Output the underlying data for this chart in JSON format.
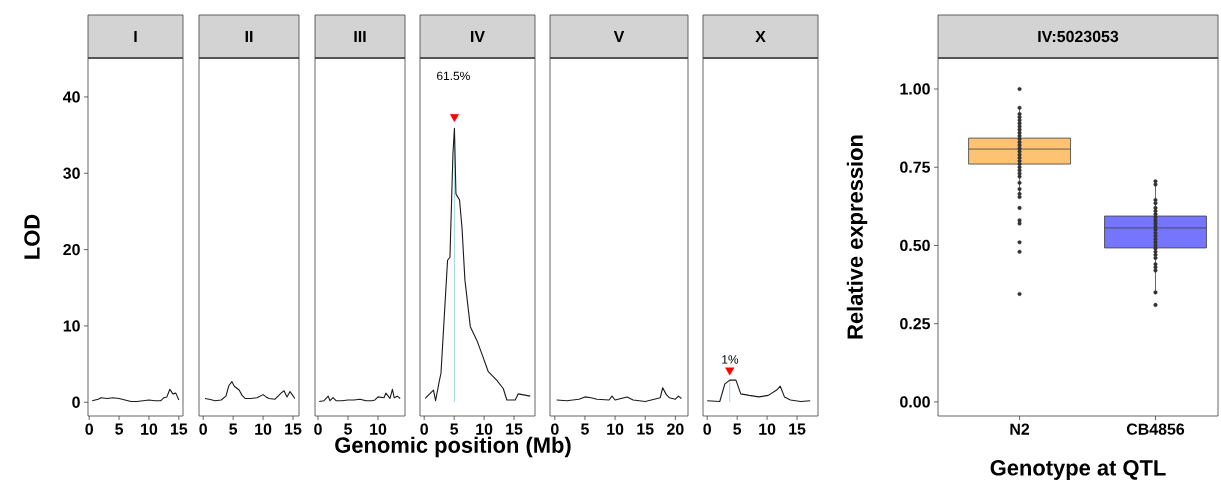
{
  "chart_data": [
    {
      "type": "line",
      "title": "I",
      "ylabel": "LOD",
      "xlim": [
        -0.2,
        15.7
      ],
      "ylim": [
        -1.8,
        45.1
      ],
      "xticks": [
        0,
        5,
        10,
        15
      ],
      "yticks": [
        0,
        10,
        20,
        30,
        40
      ],
      "marker": "none",
      "series": [
        {
          "color": "#1a1a1a",
          "x": [
            0.5,
            1.5,
            2,
            3,
            4,
            5,
            6,
            7,
            8,
            9,
            10,
            11,
            12,
            12.5,
            13,
            13.5,
            14,
            14.5,
            15
          ],
          "values": [
            0.2,
            0.4,
            0.6,
            0.5,
            0.6,
            0.5,
            0.3,
            0.1,
            0.1,
            0.2,
            0.3,
            0.2,
            0.2,
            0.6,
            0.7,
            1.7,
            1.1,
            1.2,
            0.3
          ]
        }
      ]
    },
    {
      "type": "line",
      "title": "II",
      "xlim": [
        -0.7,
        16
      ],
      "ylim": [
        -1.8,
        45.1
      ],
      "xticks": [
        0,
        5,
        10,
        15
      ],
      "tick_labels": "x",
      "marker": "none",
      "series": [
        {
          "color": "#1a1a1a",
          "x": [
            0.3,
            1,
            2,
            3,
            3.8,
            4.3,
            4.8,
            5.2,
            6,
            6.5,
            7,
            8,
            9,
            10,
            10.5,
            11,
            12,
            12.5,
            13,
            13.5,
            14,
            14.5,
            15.3
          ],
          "values": [
            0.5,
            0.4,
            0.2,
            0.3,
            0.8,
            2.2,
            2.7,
            2.1,
            1.6,
            0.9,
            0.5,
            0.5,
            0.6,
            1.0,
            0.7,
            0.5,
            0.4,
            0.8,
            1.2,
            1.5,
            0.7,
            1.4,
            0.5
          ]
        }
      ]
    },
    {
      "type": "line",
      "title": "III",
      "xlim": [
        -0.5,
        14.5
      ],
      "ylim": [
        -1.8,
        45.1
      ],
      "xticks": [
        0,
        5,
        10
      ],
      "tick_labels": "x",
      "marker": "none",
      "series": [
        {
          "color": "#1a1a1a",
          "x": [
            0.2,
            1,
            1.7,
            2,
            2.5,
            3,
            4,
            5,
            6,
            7,
            8,
            9,
            9.5,
            10,
            11,
            11.3,
            12,
            12.4,
            12.7,
            13.2,
            13.7
          ],
          "values": [
            0.1,
            0.2,
            0.8,
            0.2,
            0.6,
            0.2,
            0.2,
            0.3,
            0.3,
            0.4,
            0.2,
            0.2,
            0.3,
            0.7,
            0.6,
            1.2,
            0.5,
            1.7,
            0.6,
            0.8,
            0.5
          ]
        }
      ]
    },
    {
      "type": "line",
      "title": "IV",
      "xlabel": "Genomic position (Mb)",
      "xlim": [
        -0.7,
        18.5
      ],
      "ylim": [
        -1.8,
        45.1
      ],
      "xticks": [
        0,
        5,
        10,
        15
      ],
      "tick_labels": "x",
      "marker": "none",
      "annotations": [
        "61.5%"
      ],
      "series": [
        {
          "color": "#add8e6",
          "x": [
            5.05,
            5.05
          ],
          "values": [
            0,
            35.9
          ]
        },
        {
          "color": "#1a1a1a",
          "x": [
            0.17,
            1.55,
            1.9,
            2.5,
            2.8,
            3.9,
            4.3,
            4.8,
            5.05,
            5.3,
            5.9,
            6.3,
            6.8,
            7.7,
            8.8,
            9.6,
            10.7,
            12.1,
            13.2,
            13.8,
            15.2,
            15.7,
            17.7
          ],
          "values": [
            0.5,
            1.6,
            0.2,
            2.7,
            3.8,
            18.6,
            19.0,
            32.6,
            35.9,
            27.3,
            26.5,
            23.0,
            16.0,
            9.9,
            8.1,
            6.4,
            4.0,
            2.9,
            1.8,
            0.3,
            0.3,
            1.1,
            0.8
          ]
        },
        {
          "type": "scatter",
          "marker": "triangle",
          "color": "#ff0000",
          "x": [
            5.05
          ],
          "values": [
            37.4
          ]
        }
      ]
    },
    {
      "type": "line",
      "title": "V",
      "xlim": [
        -0.8,
        22.1
      ],
      "ylim": [
        -1.8,
        45.1
      ],
      "xticks": [
        0,
        5,
        10,
        15,
        20
      ],
      "tick_labels": "x",
      "marker": "none",
      "series": [
        {
          "color": "#1a1a1a",
          "x": [
            0.3,
            2,
            4,
            5,
            6,
            7,
            9,
            9.5,
            10,
            11.5,
            12,
            13,
            15,
            16,
            17,
            17.5,
            17.9,
            18.5,
            19,
            20,
            20.5,
            21
          ],
          "values": [
            0.3,
            0.2,
            0.4,
            0.7,
            0.6,
            0.4,
            0.3,
            0.8,
            0.3,
            0.6,
            0.7,
            0.3,
            0.1,
            0.3,
            0.5,
            0.6,
            1.9,
            1.0,
            0.6,
            0.4,
            0.8,
            0.5
          ]
        }
      ]
    },
    {
      "type": "line",
      "title": "X",
      "xlim": [
        -0.7,
        18.5
      ],
      "ylim": [
        -1.8,
        45.1
      ],
      "xticks": [
        0,
        5,
        10,
        15
      ],
      "tick_labels": "x",
      "marker": "none",
      "annotations": [
        {
          "text": "1%",
          "x": 3.8,
          "y": 4.9
        }
      ],
      "series": [
        {
          "color": "#add8e6",
          "x": [
            3.76,
            3.76
          ],
          "values": [
            0,
            2.9
          ]
        },
        {
          "color": "#1a1a1a",
          "x": [
            0,
            2.1,
            2.95,
            3.76,
            4.8,
            5.6,
            7.0,
            8.6,
            10.2,
            11.6,
            12.2,
            12.9,
            13.9,
            15.6,
            17.2
          ],
          "values": [
            0.2,
            0.1,
            2.4,
            2.9,
            2.9,
            1.1,
            0.9,
            0.7,
            0.9,
            1.6,
            2.1,
            0.7,
            0.3,
            0.1,
            0.2
          ]
        },
        {
          "type": "scatter",
          "marker": "triangle",
          "color": "#ff0000",
          "x": [
            3.76
          ],
          "values": [
            4.2
          ]
        }
      ]
    },
    {
      "type": "box",
      "title": "IV:5023053",
      "xlabel": "Genotype at QTL",
      "ylabel": "Relative expression",
      "categories": [
        "N2",
        "CB4856"
      ],
      "colors": [
        "#fdc272",
        "#7575fd"
      ],
      "ylim": [
        -0.045,
        1.099
      ],
      "yticks": [
        {
          "value": 0,
          "label": "0.00"
        },
        {
          "value": 0.25,
          "label": "0.25"
        },
        {
          "value": 0.5,
          "label": "0.50"
        },
        {
          "value": 0.75,
          "label": "0.75"
        },
        {
          "value": 1,
          "label": "1.00"
        }
      ],
      "boxes": [
        {
          "low": 0.655,
          "q1": 0.76,
          "median": 0.808,
          "q3": 0.843,
          "high": 0.936
        },
        {
          "low": 0.351,
          "q1": 0.492,
          "median": 0.556,
          "q3": 0.594,
          "high": 0.703
        }
      ],
      "series": [
        {
          "type": "scatter",
          "marker": "circle",
          "color": "#333333",
          "x": [
            "N2",
            "N2",
            "N2",
            "N2",
            "N2",
            "N2",
            "N2",
            "N2",
            "N2",
            "N2",
            "N2",
            "N2",
            "N2",
            "N2",
            "N2",
            "N2",
            "N2",
            "N2",
            "N2",
            "N2",
            "N2",
            "N2",
            "N2",
            "N2",
            "N2",
            "N2",
            "N2",
            "N2",
            "N2",
            "N2",
            "N2",
            "N2",
            "N2",
            "CB4856",
            "CB4856",
            "CB4856",
            "CB4856",
            "CB4856",
            "CB4856",
            "CB4856",
            "CB4856",
            "CB4856",
            "CB4856",
            "CB4856",
            "CB4856",
            "CB4856",
            "CB4856",
            "CB4856",
            "CB4856",
            "CB4856",
            "CB4856",
            "CB4856",
            "CB4856",
            "CB4856",
            "CB4856",
            "CB4856",
            "CB4856",
            "CB4856",
            "CB4856"
          ],
          "values": [
            1.0,
            0.94,
            0.92,
            0.91,
            0.9,
            0.89,
            0.88,
            0.87,
            0.86,
            0.85,
            0.84,
            0.83,
            0.82,
            0.81,
            0.8,
            0.79,
            0.78,
            0.77,
            0.76,
            0.75,
            0.74,
            0.73,
            0.72,
            0.7,
            0.68,
            0.665,
            0.655,
            0.62,
            0.58,
            0.57,
            0.51,
            0.48,
            0.345,
            0.705,
            0.695,
            0.645,
            0.635,
            0.62,
            0.61,
            0.6,
            0.59,
            0.58,
            0.57,
            0.56,
            0.55,
            0.54,
            0.53,
            0.52,
            0.51,
            0.5,
            0.49,
            0.48,
            0.47,
            0.46,
            0.44,
            0.43,
            0.42,
            0.35,
            0.31
          ]
        }
      ]
    }
  ]
}
